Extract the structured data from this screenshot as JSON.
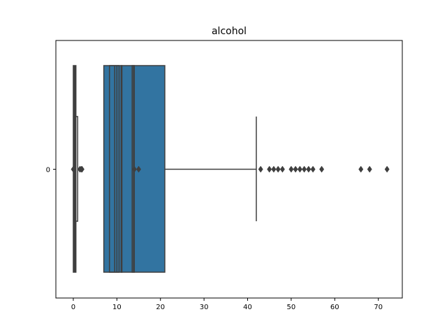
{
  "chart_data": {
    "type": "boxplot",
    "title": "alcohol",
    "orientation": "horizontal",
    "xlim": [
      -4,
      75.5
    ],
    "xticks": [
      0,
      10,
      20,
      30,
      40,
      50,
      60,
      70
    ],
    "categories": [
      "0"
    ],
    "grid": false,
    "colors": {
      "box_fill": "#3274a1",
      "line": "#3f3f3f",
      "frame": "#000000"
    },
    "boxes": [
      {
        "q1": 0,
        "median": 0.5,
        "q3": 0.6,
        "whisker_low": 0,
        "whisker_high": 0.6,
        "outliers": []
      },
      {
        "q1": 0.3,
        "median": 0.5,
        "q3": 1.0,
        "whisker_low": 0.3,
        "whisker_high": 1.0,
        "outliers": [
          0,
          1.5,
          1.8,
          2.0
        ]
      },
      {
        "q1": 7,
        "median": 10,
        "q3": 21,
        "whisker_low": 7,
        "whisker_high": 42,
        "outliers": [
          43,
          45,
          46,
          47,
          48,
          50,
          51,
          52,
          53,
          54,
          55,
          57,
          66,
          68,
          72
        ]
      },
      {
        "q1": 8.3,
        "median": 9.5,
        "q3": 10.5,
        "whisker_low": 8.3,
        "whisker_high": 10.5,
        "outliers": []
      },
      {
        "q1": 11,
        "median": 11,
        "q3": 11,
        "whisker_low": 11,
        "whisker_high": 11,
        "outliers": []
      },
      {
        "q1": 13.5,
        "median": 13.8,
        "q3": 14,
        "whisker_low": 13.5,
        "whisker_high": 14,
        "outliers": [
          14,
          15
        ]
      }
    ]
  }
}
